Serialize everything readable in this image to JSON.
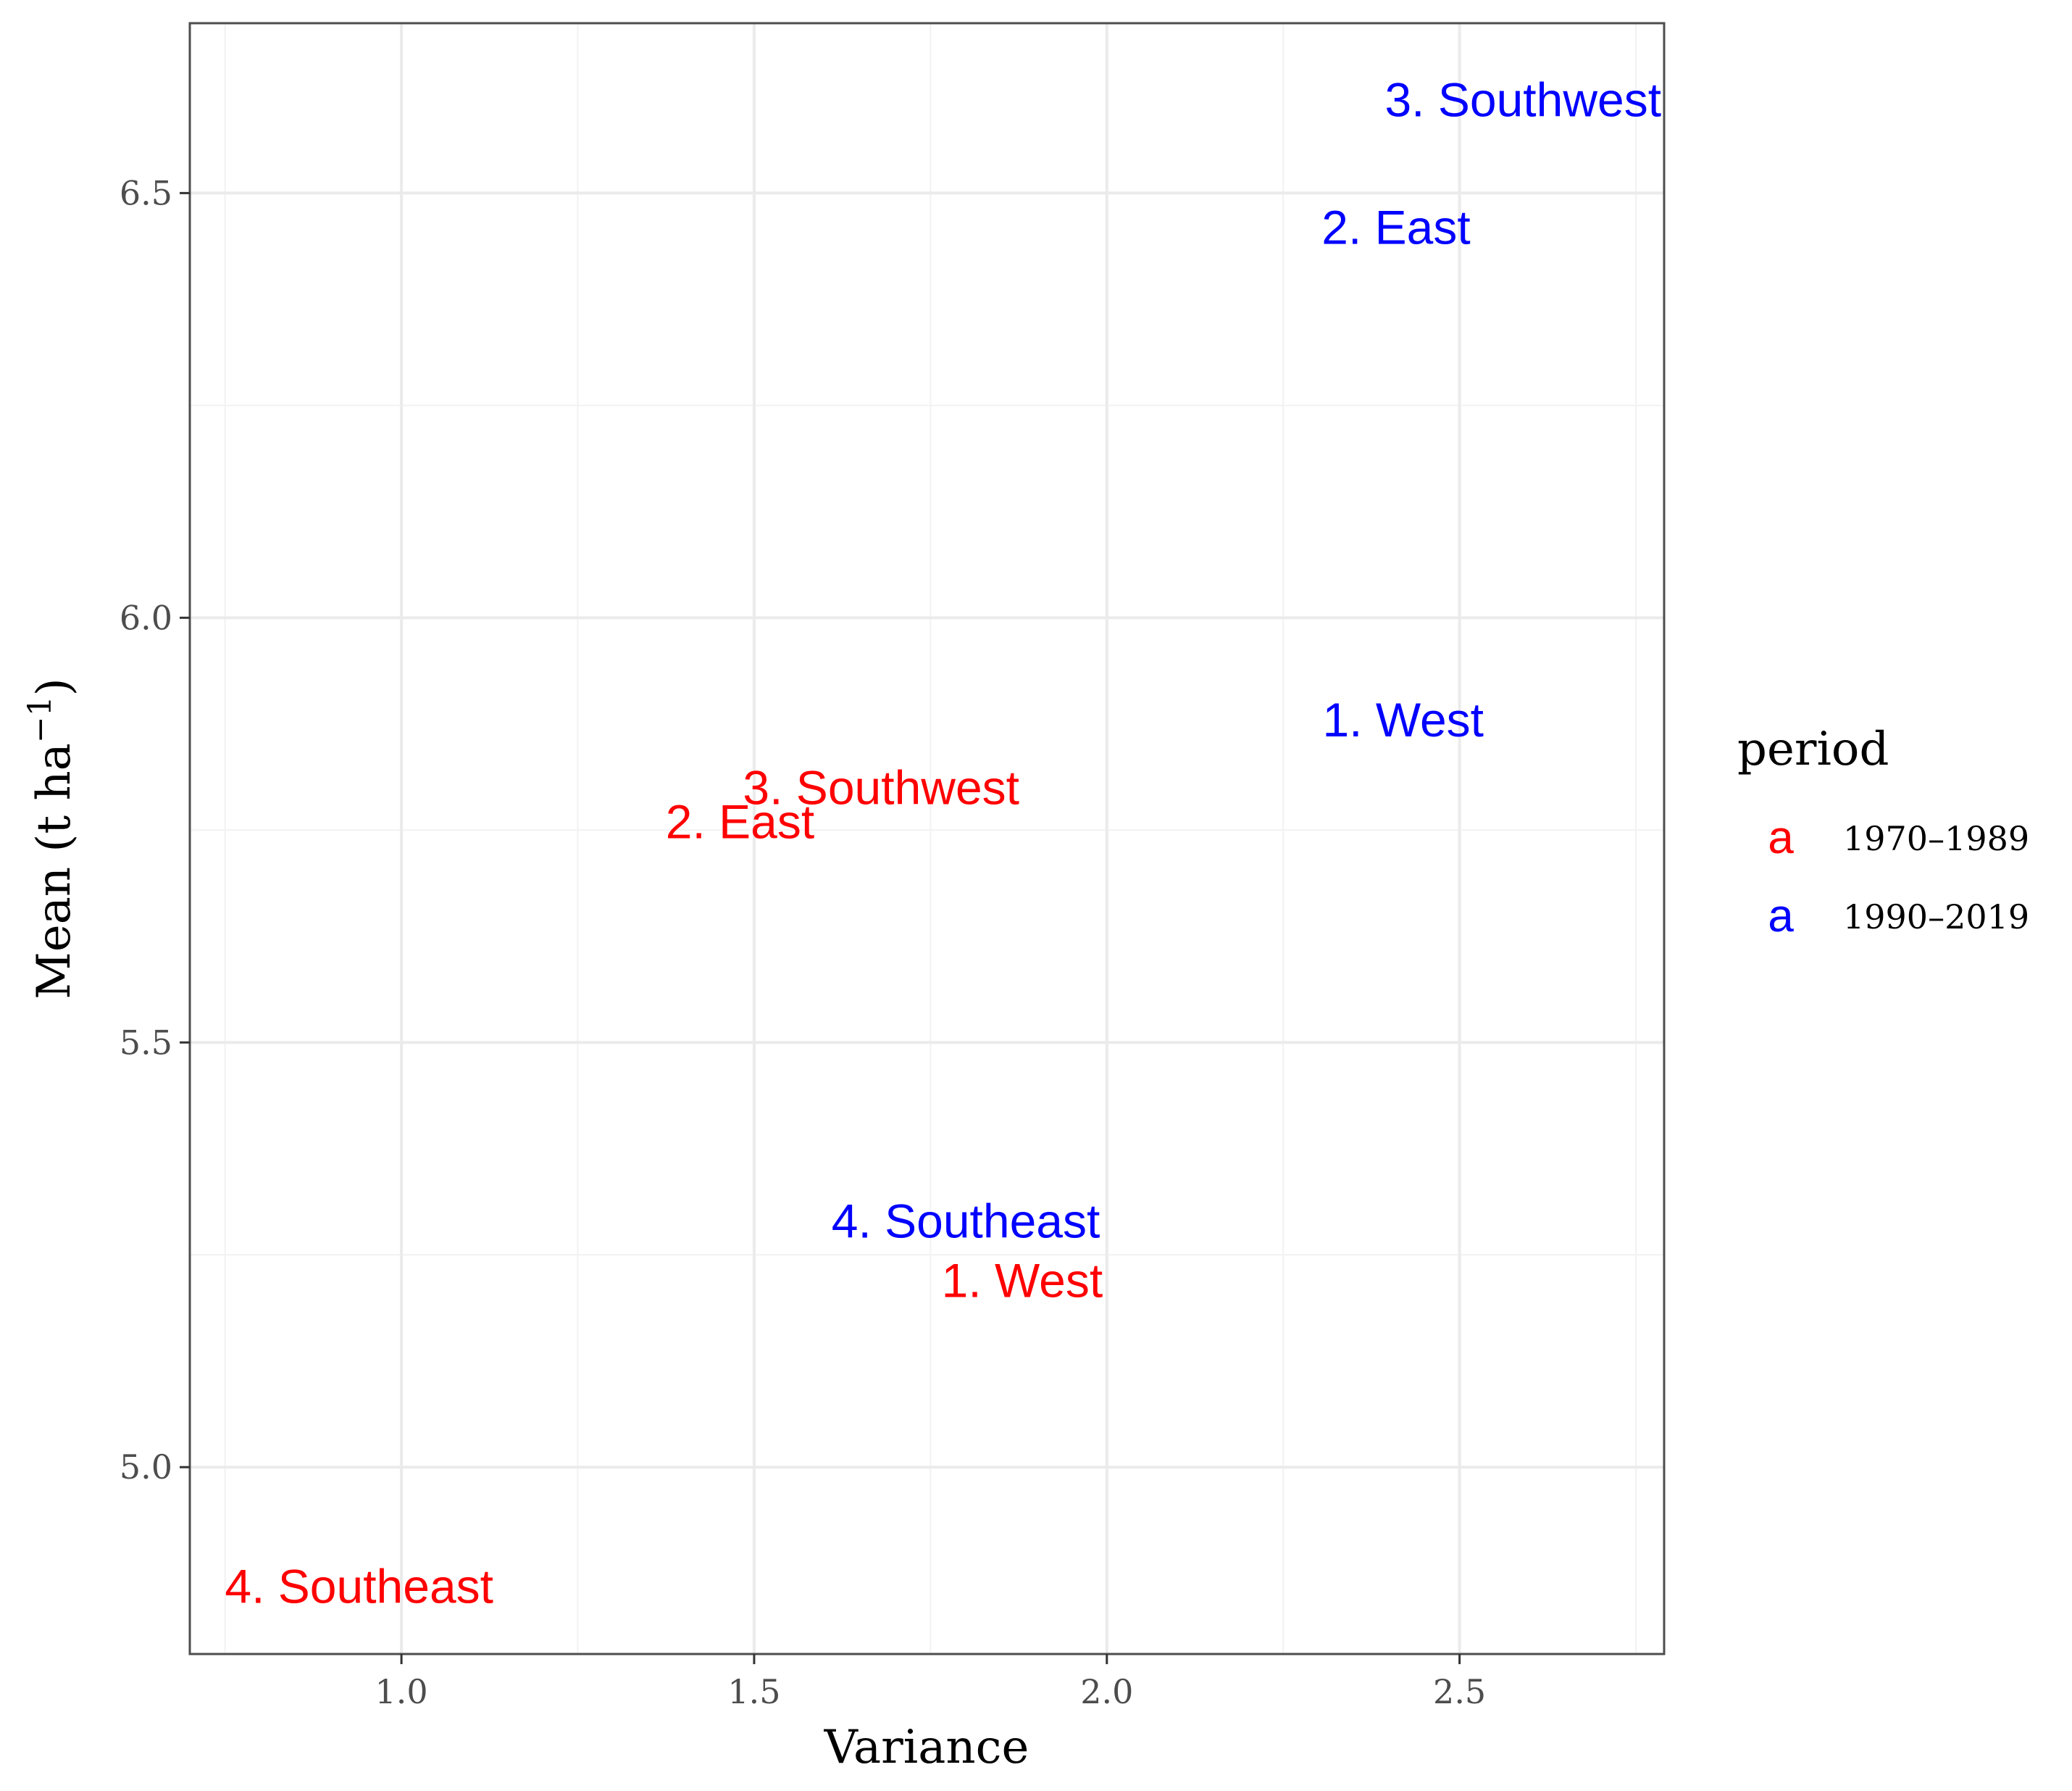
{
  "chart_data": {
    "type": "scatter",
    "xlabel": "Variance",
    "ylabel_main": "Mean (t ha",
    "ylabel_sup": "−1",
    "ylabel_close": ")",
    "xlim": [
      0.7,
      2.79
    ],
    "ylim": [
      4.78,
      6.7
    ],
    "x_ticks": [
      1.0,
      1.5,
      2.0,
      2.5
    ],
    "x_tick_labels": [
      "1.0",
      "1.5",
      "2.0",
      "2.5"
    ],
    "y_ticks": [
      5.0,
      5.5,
      6.0,
      6.5
    ],
    "y_tick_labels": [
      "5.0",
      "5.5",
      "6.0",
      "6.5"
    ],
    "grid": true,
    "legend": {
      "title": "period",
      "position": "right",
      "key_glyph": "a",
      "entries": [
        {
          "label": "1970–1989",
          "color": "#ff0000"
        },
        {
          "label": "1990–2019",
          "color": "#0000ff"
        }
      ]
    },
    "series": [
      {
        "name": "1970–1989",
        "color": "#ff0000",
        "points": [
          {
            "label": "1. West",
            "x": 1.88,
            "y": 5.22
          },
          {
            "label": "2. East",
            "x": 1.48,
            "y": 5.76
          },
          {
            "label": "3. Southwest",
            "x": 1.68,
            "y": 5.8
          },
          {
            "label": "4. Southeast",
            "x": 0.94,
            "y": 4.86
          }
        ]
      },
      {
        "name": "1990–2019",
        "color": "#0000ff",
        "points": [
          {
            "label": "1. West",
            "x": 2.42,
            "y": 5.88
          },
          {
            "label": "2. East",
            "x": 2.41,
            "y": 6.46
          },
          {
            "label": "3. Southwest",
            "x": 2.59,
            "y": 6.61
          },
          {
            "label": "4. Southeast",
            "x": 1.8,
            "y": 5.29
          }
        ]
      }
    ]
  }
}
